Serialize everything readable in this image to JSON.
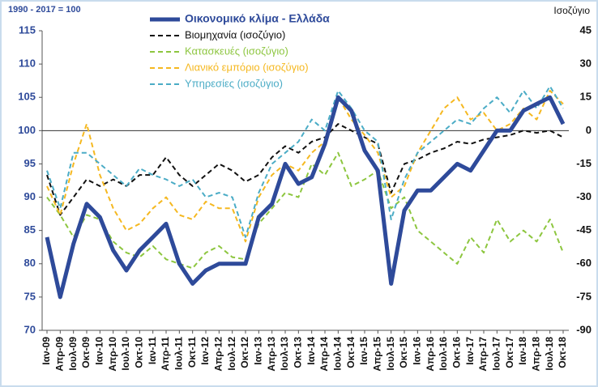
{
  "chart_data": {
    "type": "line",
    "base_label": "1990 - 2017 = 100",
    "y2_label": "Ισοζύγιο",
    "categories": [
      "Ιαν-09",
      "Απρ-09",
      "Ιουλ-09",
      "Οκτ-09",
      "Ιαν-10",
      "Απρ-10",
      "Ιουλ-10",
      "Οκτ-10",
      "Ιαν-11",
      "Απρ-11",
      "Ιουλ-11",
      "Οκτ-11",
      "Ιαν-12",
      "Απρ-12",
      "Ιουλ-12",
      "Οκτ-12",
      "Ιαν-13",
      "Απρ-13",
      "Ιουλ-13",
      "Οκτ-13",
      "Ιαν-14",
      "Απρ-14",
      "Ιουλ-14",
      "Οκτ-14",
      "Ιαν-15",
      "Απρ-15",
      "Ιουλ-15",
      "Οκτ-15",
      "Ιαν-16",
      "Απρ-16",
      "Ιουλ-16",
      "Οκτ-16",
      "Ιαν-17",
      "Απρ-17",
      "Ιουλ-17",
      "Οκτ-17",
      "Ιαν-18",
      "Απρ-18",
      "Ιουλ-18",
      "Οκτ-18"
    ],
    "series": [
      {
        "name": "Οικονομικό κλίμα - Ελλάδα",
        "color": "#2e4a9a",
        "axis": "y",
        "dashed": false,
        "values": [
          84,
          75,
          83,
          89,
          87,
          82,
          79,
          82,
          84,
          86,
          80,
          77,
          79,
          80,
          80,
          80,
          87,
          89,
          95,
          92,
          93,
          98,
          105,
          103,
          97,
          94,
          77,
          88,
          91,
          91,
          93,
          95,
          94,
          97,
          100,
          100,
          103,
          104,
          105,
          101
        ]
      },
      {
        "name": "Βιομηχανία (ισοζύγιο)",
        "color": "#111111",
        "axis": "y2",
        "dashed": true,
        "values": [
          -20,
          -38,
          -30,
          -22,
          -25,
          -22,
          -25,
          -20,
          -20,
          -12,
          -20,
          -25,
          -20,
          -15,
          -18,
          -23,
          -20,
          -12,
          -7,
          -10,
          -5,
          -3,
          3,
          0,
          -3,
          -6,
          -28,
          -15,
          -13,
          -10,
          -8,
          -5,
          -6,
          -4,
          -3,
          -2,
          0,
          -1,
          0,
          -3
        ]
      },
      {
        "name": "Κατασκευές (ισοζύγιο)",
        "color": "#8dc63f",
        "axis": "y2",
        "dashed": true,
        "values": [
          -30,
          -38,
          -48,
          -38,
          -40,
          -50,
          -55,
          -57,
          -52,
          -58,
          -60,
          -62,
          -55,
          -52,
          -57,
          -58,
          -42,
          -35,
          -28,
          -30,
          -15,
          -20,
          -10,
          -25,
          -22,
          -18,
          -35,
          -30,
          -45,
          -50,
          -55,
          -60,
          -48,
          -55,
          -40,
          -50,
          -45,
          -50,
          -40,
          -55
        ]
      },
      {
        "name": "Λιανικό εμπόριο (ισοζύγιο)",
        "color": "#f5b820",
        "axis": "y2",
        "dashed": true,
        "values": [
          -25,
          -38,
          -15,
          3,
          -20,
          -35,
          -45,
          -42,
          -35,
          -30,
          -38,
          -40,
          -32,
          -35,
          -35,
          -50,
          -30,
          -20,
          -15,
          -18,
          -10,
          -5,
          15,
          5,
          -2,
          -10,
          -30,
          -25,
          -10,
          0,
          10,
          15,
          5,
          8,
          0,
          3,
          10,
          5,
          18,
          12
        ]
      },
      {
        "name": "Υπηρεσίες (ισοζύγιο)",
        "color": "#4bacc6",
        "axis": "y2",
        "dashed": true,
        "values": [
          -18,
          -35,
          -10,
          -10,
          -15,
          -20,
          -25,
          -17,
          -20,
          -22,
          -25,
          -22,
          -30,
          -28,
          -30,
          -48,
          -28,
          -15,
          -10,
          -5,
          5,
          0,
          18,
          10,
          0,
          -5,
          -40,
          -22,
          -10,
          -5,
          0,
          5,
          3,
          10,
          15,
          8,
          18,
          10,
          20,
          10
        ]
      }
    ],
    "ylim": [
      70,
      115
    ],
    "yticks": [
      70,
      75,
      80,
      85,
      90,
      95,
      100,
      105,
      110,
      115
    ],
    "y2lim": [
      -90,
      45
    ],
    "y2ticks": [
      -90,
      -75,
      -60,
      -45,
      -30,
      -15,
      0,
      15,
      30,
      45
    ],
    "ref_line": 100,
    "grid": false
  }
}
